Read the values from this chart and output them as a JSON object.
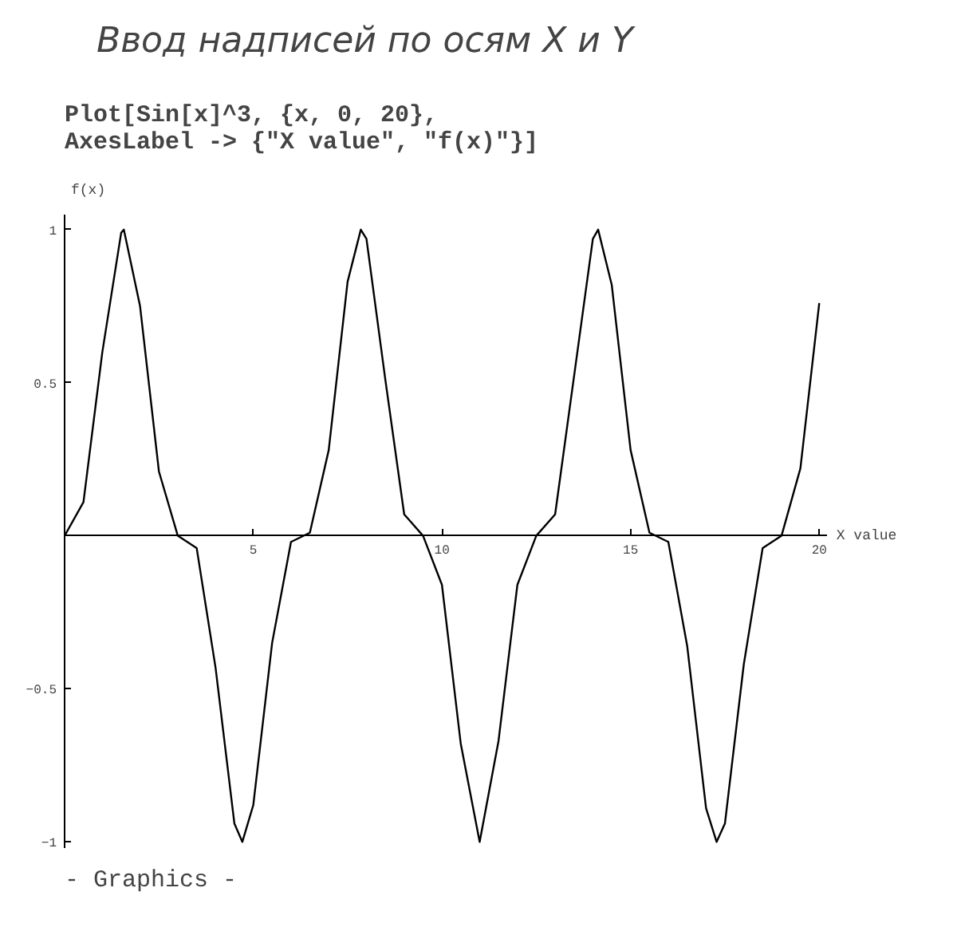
{
  "chart_data": {
    "type": "line",
    "title": "Ввод надписей по осям X и Y",
    "subtitle": "Plot[Sin[x]^3, {x, 0, 20},\nAxesLabel -> {\"X value\", \"f(x)\"}]",
    "xlabel": "X value",
    "ylabel": "f(x)",
    "annotations": [
      "- Graphics -"
    ],
    "x": [
      0,
      0.5,
      1,
      1.5,
      1.57,
      2,
      2.5,
      3,
      3.5,
      4,
      4.5,
      4.71,
      5,
      5.5,
      6,
      6.5,
      7,
      7.5,
      7.85,
      8,
      8.5,
      9,
      9.5,
      10,
      10.5,
      11,
      11.5,
      12,
      12.5,
      13,
      13.5,
      14,
      14.14,
      14.5,
      15,
      15.5,
      16,
      16.5,
      17,
      17.28,
      17.5,
      18,
      18.5,
      19,
      19.5,
      20
    ],
    "series": [
      {
        "color": "#000000",
        "values": [
          0,
          0.11,
          0.6,
          0.99,
          1,
          0.75,
          0.21,
          0,
          -0.04,
          -0.43,
          -0.94,
          -1,
          -0.88,
          -0.35,
          -0.02,
          0.01,
          0.28,
          0.83,
          1,
          0.97,
          0.51,
          0.07,
          0,
          -0.16,
          -0.68,
          -1,
          -0.67,
          -0.16,
          0,
          0.07,
          0.52,
          0.97,
          1,
          0.82,
          0.28,
          0.01,
          -0.02,
          -0.36,
          -0.89,
          -1,
          -0.94,
          -0.42,
          -0.04,
          0,
          0.22,
          0.76
        ]
      }
    ],
    "xlim": [
      0,
      20.2
    ],
    "ylim": [
      -1.02,
      1.05
    ],
    "xticks": [
      5,
      10,
      15,
      20
    ],
    "yticks": [
      -1,
      -0.5,
      0.5,
      1
    ],
    "grid": false
  }
}
